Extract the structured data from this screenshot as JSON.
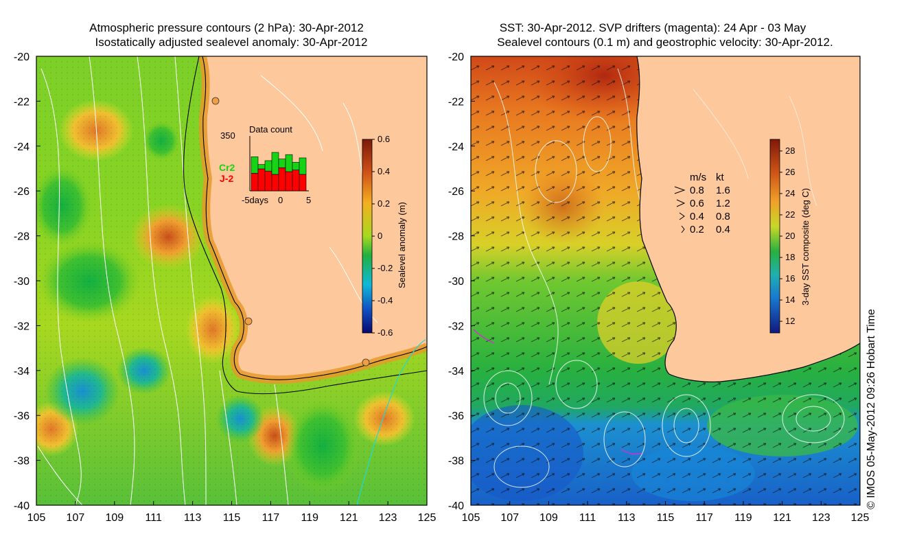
{
  "left_panel": {
    "title_line1": "Atmospheric pressure contours (2 hPa): 30-Apr-2012",
    "title_line2": "Isostatically adjusted sealevel anomaly: 30-Apr-2012",
    "x_ticks": [
      "105",
      "107",
      "109",
      "111",
      "113",
      "115",
      "117",
      "119",
      "121",
      "123",
      "125"
    ],
    "y_ticks": [
      "-20",
      "-22",
      "-24",
      "-26",
      "-28",
      "-30",
      "-32",
      "-34",
      "-36",
      "-38",
      "-40"
    ],
    "colorbar": {
      "label": "Sealevel anomaly (m)",
      "ticks": [
        "0.6",
        "0.4",
        "0.2",
        "0",
        "-0.2",
        "-0.4",
        "-0.6"
      ]
    },
    "data_count": {
      "title": "Data count",
      "max_label": "350",
      "series_cr2": "Cr2",
      "series_j2": "J-2",
      "x_left": "-5days",
      "x_mid": "0",
      "x_right": "5",
      "cr2_heights": [
        0.62,
        0.48,
        0.55,
        0.7,
        0.58,
        0.66,
        0.52,
        0.6
      ],
      "j2_heights": [
        0.32,
        0.4,
        0.36,
        0.3,
        0.42,
        0.35,
        0.38,
        0.3
      ],
      "color_cr2": "#16d316",
      "color_j2": "#ff0000"
    }
  },
  "right_panel": {
    "title_line1": "SST: 30-Apr-2012. SVP drifters (magenta): 24 Apr - 03 May",
    "title_line2": "Sealevel contours (0.1 m) and geostrophic velocity: 30-Apr-2012.",
    "x_ticks": [
      "105",
      "107",
      "109",
      "111",
      "113",
      "115",
      "117",
      "119",
      "121",
      "123",
      "125"
    ],
    "y_ticks": [
      "-20",
      "-22",
      "-24",
      "-26",
      "-28",
      "-30",
      "-32",
      "-34",
      "-36",
      "-38",
      "-40"
    ],
    "colorbar": {
      "label": "3-day SST composite (deg C)",
      "ticks": [
        "28",
        "26",
        "24",
        "22",
        "20",
        "18",
        "16",
        "14",
        "12"
      ]
    },
    "velocity_legend": {
      "header_ms": "m/s",
      "header_kt": "kt",
      "rows": [
        {
          "ms": "0.8",
          "kt": "1.6"
        },
        {
          "ms": "0.6",
          "kt": "1.2"
        },
        {
          "ms": "0.4",
          "kt": "0.8"
        },
        {
          "ms": "0.2",
          "kt": "0.4"
        }
      ]
    }
  },
  "credit": "© IMOS 05-May-2012 09:26 Hobart Time",
  "colors": {
    "land": "#fcc89c",
    "contour": "#ffffff",
    "coast": "#000000"
  }
}
